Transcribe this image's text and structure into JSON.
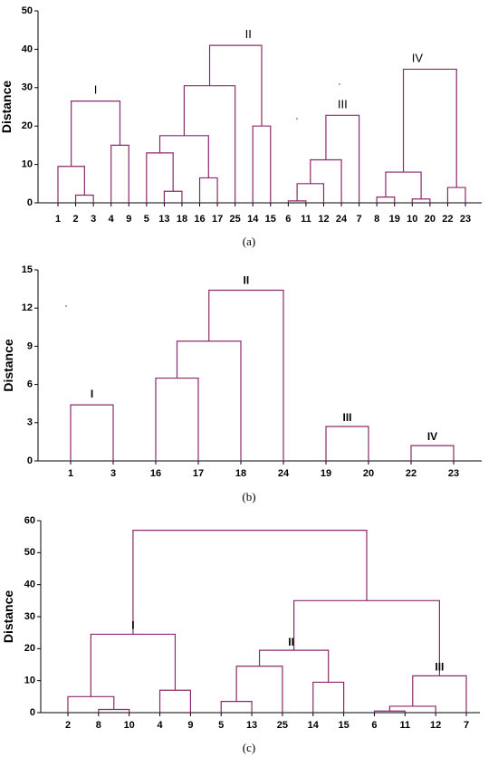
{
  "chart_data": [
    {
      "type": "dendrogram",
      "caption": "(a)",
      "ylabel": "Distance",
      "ylim": [
        0,
        50
      ],
      "yticks": [
        0,
        10,
        20,
        30,
        40,
        50
      ],
      "leaves": [
        "1",
        "2",
        "3",
        "4",
        "9",
        "5",
        "13",
        "18",
        "16",
        "17",
        "25",
        "14",
        "15",
        "6",
        "11",
        "12",
        "24",
        "7",
        "8",
        "19",
        "10",
        "20",
        "22",
        "23"
      ],
      "merges": [
        {
          "a": "L:2",
          "b": "L:3",
          "h": 2.0
        },
        {
          "a": "L:1",
          "b": "M:0",
          "h": 9.5
        },
        {
          "a": "L:4",
          "b": "L:9",
          "h": 15.0
        },
        {
          "a": "M:1",
          "b": "M:2",
          "h": 26.5
        },
        {
          "a": "L:13",
          "b": "L:18",
          "h": 3.0
        },
        {
          "a": "L:5",
          "b": "M:4",
          "h": 13.0
        },
        {
          "a": "L:16",
          "b": "L:17",
          "h": 6.5
        },
        {
          "a": "M:5",
          "b": "M:6",
          "h": 17.5
        },
        {
          "a": "M:7",
          "b": "L:25",
          "h": 30.5
        },
        {
          "a": "L:14",
          "b": "L:15",
          "h": 20.0
        },
        {
          "a": "M:8",
          "b": "M:9",
          "h": 41.0
        },
        {
          "a": "L:6",
          "b": "L:11",
          "h": 0.5
        },
        {
          "a": "M:11",
          "b": "L:12",
          "h": 5.0
        },
        {
          "a": "M:12",
          "b": "L:24",
          "h": 11.2
        },
        {
          "a": "M:13",
          "b": "L:7",
          "h": 22.8
        },
        {
          "a": "L:8",
          "b": "L:19",
          "h": 1.5
        },
        {
          "a": "L:10",
          "b": "L:20",
          "h": 1.0
        },
        {
          "a": "M:15",
          "b": "M:16",
          "h": 8.0
        },
        {
          "a": "L:22",
          "b": "L:23",
          "h": 4.0
        },
        {
          "a": "M:17",
          "b": "M:18",
          "h": 34.8
        }
      ],
      "cluster_labels": [
        {
          "text": "I",
          "merge": 3
        },
        {
          "text": "II",
          "merge": 10
        },
        {
          "text": "III",
          "merge": 14
        },
        {
          "text": "IV",
          "merge": 19
        }
      ]
    },
    {
      "type": "dendrogram",
      "caption": "(b)",
      "ylabel": "Distance",
      "ylim": [
        0,
        15
      ],
      "yticks": [
        0,
        3,
        6,
        9,
        12,
        15
      ],
      "leaves": [
        "1",
        "3",
        "16",
        "17",
        "18",
        "24",
        "19",
        "20",
        "22",
        "23"
      ],
      "merges": [
        {
          "a": "L:1",
          "b": "L:3",
          "h": 4.4
        },
        {
          "a": "L:16",
          "b": "L:17",
          "h": 6.5
        },
        {
          "a": "M:1",
          "b": "L:18",
          "h": 9.4
        },
        {
          "a": "M:2",
          "b": "L:24",
          "h": 13.4
        },
        {
          "a": "L:19",
          "b": "L:20",
          "h": 2.7
        },
        {
          "a": "L:22",
          "b": "L:23",
          "h": 1.2
        }
      ],
      "cluster_labels": [
        {
          "text": "I",
          "merge": 0
        },
        {
          "text": "II",
          "merge": 3
        },
        {
          "text": "III",
          "merge": 4
        },
        {
          "text": "IV",
          "merge": 5
        }
      ]
    },
    {
      "type": "dendrogram",
      "caption": "(c)",
      "ylabel": "Distance",
      "ylim": [
        0,
        60
      ],
      "yticks": [
        0,
        10,
        20,
        30,
        40,
        50,
        60
      ],
      "leaves": [
        "2",
        "8",
        "10",
        "4",
        "9",
        "5",
        "13",
        "25",
        "14",
        "15",
        "6",
        "11",
        "12",
        "7"
      ],
      "merges": [
        {
          "a": "L:8",
          "b": "L:10",
          "h": 1.0
        },
        {
          "a": "L:2",
          "b": "M:0",
          "h": 5.0
        },
        {
          "a": "L:4",
          "b": "L:9",
          "h": 7.0
        },
        {
          "a": "M:1",
          "b": "M:2",
          "h": 24.5
        },
        {
          "a": "L:5",
          "b": "L:13",
          "h": 3.5
        },
        {
          "a": "M:4",
          "b": "L:25",
          "h": 14.5
        },
        {
          "a": "L:14",
          "b": "L:15",
          "h": 9.5
        },
        {
          "a": "M:5",
          "b": "M:6",
          "h": 19.5
        },
        {
          "a": "L:6",
          "b": "L:11",
          "h": 0.5
        },
        {
          "a": "M:8",
          "b": "L:12",
          "h": 2.0
        },
        {
          "a": "M:9",
          "b": "L:7",
          "h": 11.5
        },
        {
          "a": "M:7",
          "b": "M:10",
          "h": 35.0
        },
        {
          "a": "M:3",
          "b": "M:11",
          "h": 57.0
        }
      ],
      "cluster_labels": [
        {
          "text": "I",
          "merge": 3
        },
        {
          "text": "II",
          "merge": 7
        },
        {
          "text": "III",
          "merge": 10
        }
      ]
    }
  ],
  "colors": {
    "link": "#8b2a6b",
    "axis": "#000000"
  }
}
